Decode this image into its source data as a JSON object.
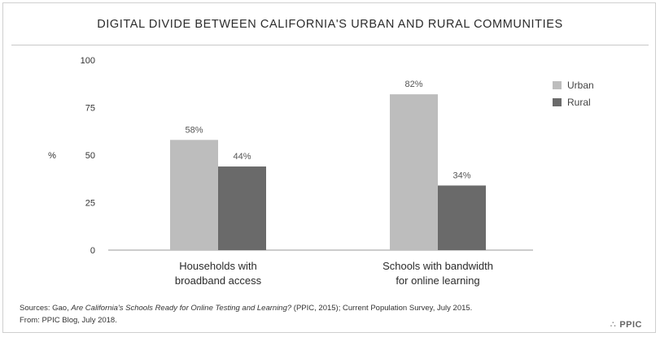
{
  "title": "DIGITAL DIVIDE BETWEEN CALIFORNIA'S URBAN AND RURAL COMMUNITIES",
  "chart_data": {
    "type": "bar",
    "title": "DIGITAL DIVIDE BETWEEN CALIFORNIA'S URBAN AND RURAL COMMUNITIES",
    "ylabel": "%",
    "xlabel": "",
    "ylim": [
      0,
      100
    ],
    "yticks": [
      0,
      25,
      50,
      75,
      100
    ],
    "categories": [
      [
        "Households with",
        "broadband access"
      ],
      [
        "Schools with bandwidth",
        "for online learning"
      ]
    ],
    "series": [
      {
        "name": "Urban",
        "values": [
          58,
          82
        ],
        "labels": [
          "58%",
          "82%"
        ],
        "color": "#bdbdbd"
      },
      {
        "name": "Rural",
        "values": [
          44,
          34
        ],
        "labels": [
          "44%",
          "34%"
        ],
        "color": "#6a6a6a"
      }
    ],
    "legend_position": "top-right",
    "grid": false
  },
  "footer": {
    "sources_prefix": "Sources: Gao, ",
    "sources_italic": "Are California's Schools Ready for Online Testing and Learning?",
    "sources_suffix": " (PPIC, 2015); Current Population Survey, July 2015.",
    "from_line": "From: PPIC Blog, July 2018."
  },
  "brand": {
    "mark": "∴",
    "name": "PPIC"
  }
}
